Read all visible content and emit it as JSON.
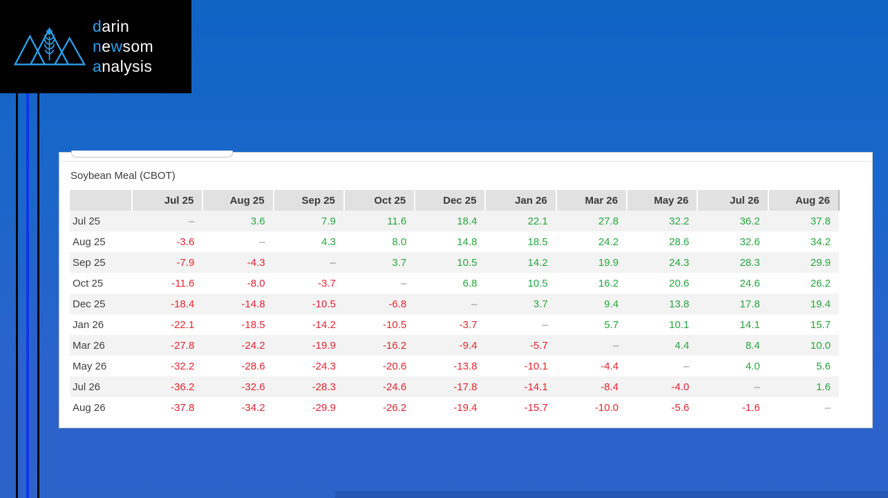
{
  "brand": {
    "name": "darin newsom analysis",
    "lines": [
      {
        "segments": [
          {
            "text": "d",
            "accent": true
          },
          {
            "text": "arin",
            "accent": false
          }
        ]
      },
      {
        "segments": [
          {
            "text": "n",
            "accent": true
          },
          {
            "text": "e",
            "accent": false
          },
          {
            "text": "w",
            "accent": true
          },
          {
            "text": "som",
            "accent": false
          }
        ]
      },
      {
        "segments": [
          {
            "text": "a",
            "accent": true
          },
          {
            "text": "nalysis",
            "accent": false
          }
        ]
      }
    ]
  },
  "colors": {
    "accent_logo_blue": "#2d9fe9",
    "positive_green": "#25a73e",
    "negative_red": "#e4252f",
    "background_blue_top": "#0f64c4",
    "background_blue_bottom": "#2c63c9",
    "header_gray": "#e1e1e1",
    "stripe_gray": "#f3f3f3",
    "bright_blue_line": "#1233e8"
  },
  "card": {
    "title": "Soybean Meal (CBOT)",
    "columns": [
      "Jul 25",
      "Aug 25",
      "Sep 25",
      "Oct 25",
      "Dec 25",
      "Jan 26",
      "Mar 26",
      "May 26",
      "Jul 26",
      "Aug 26"
    ],
    "rows": [
      {
        "label": "Jul 25",
        "values": [
          "–",
          "3.6",
          "7.9",
          "11.6",
          "18.4",
          "22.1",
          "27.8",
          "32.2",
          "36.2",
          "37.8"
        ]
      },
      {
        "label": "Aug 25",
        "values": [
          "-3.6",
          "–",
          "4.3",
          "8.0",
          "14.8",
          "18.5",
          "24.2",
          "28.6",
          "32.6",
          "34.2"
        ]
      },
      {
        "label": "Sep 25",
        "values": [
          "-7.9",
          "-4.3",
          "–",
          "3.7",
          "10.5",
          "14.2",
          "19.9",
          "24.3",
          "28.3",
          "29.9"
        ]
      },
      {
        "label": "Oct 25",
        "values": [
          "-11.6",
          "-8.0",
          "-3.7",
          "–",
          "6.8",
          "10.5",
          "16.2",
          "20.6",
          "24.6",
          "26.2"
        ]
      },
      {
        "label": "Dec 25",
        "values": [
          "-18.4",
          "-14.8",
          "-10.5",
          "-6.8",
          "–",
          "3.7",
          "9.4",
          "13.8",
          "17.8",
          "19.4"
        ]
      },
      {
        "label": "Jan 26",
        "values": [
          "-22.1",
          "-18.5",
          "-14.2",
          "-10.5",
          "-3.7",
          "–",
          "5.7",
          "10.1",
          "14.1",
          "15.7"
        ]
      },
      {
        "label": "Mar 26",
        "values": [
          "-27.8",
          "-24.2",
          "-19.9",
          "-16.2",
          "-9.4",
          "-5.7",
          "–",
          "4.4",
          "8.4",
          "10.0"
        ]
      },
      {
        "label": "May 26",
        "values": [
          "-32.2",
          "-28.6",
          "-24.3",
          "-20.6",
          "-13.8",
          "-10.1",
          "-4.4",
          "–",
          "4.0",
          "5.6"
        ]
      },
      {
        "label": "Jul 26",
        "values": [
          "-36.2",
          "-32.6",
          "-28.3",
          "-24.6",
          "-17.8",
          "-14.1",
          "-8.4",
          "-4.0",
          "–",
          "1.6"
        ]
      },
      {
        "label": "Aug 26",
        "values": [
          "-37.8",
          "-34.2",
          "-29.9",
          "-26.2",
          "-19.4",
          "-15.7",
          "-10.0",
          "-5.6",
          "-1.6",
          "–"
        ]
      }
    ]
  }
}
